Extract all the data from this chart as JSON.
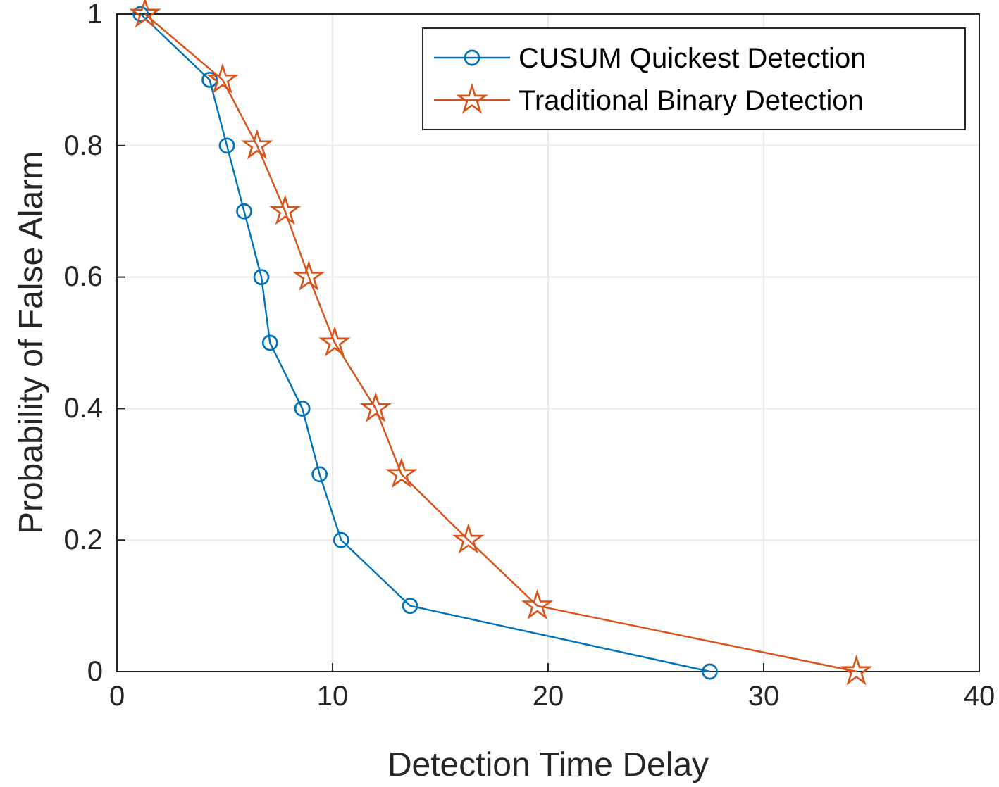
{
  "chart_data": {
    "type": "line",
    "xlabel": "Detection Time Delay",
    "ylabel": "Probability of False Alarm",
    "xlim": [
      0,
      40
    ],
    "xticks": [
      0,
      10,
      20,
      30,
      40
    ],
    "ylim": [
      0,
      1
    ],
    "yticks": [
      0,
      0.2,
      0.4,
      0.6,
      0.8,
      1
    ],
    "grid": true,
    "legend": "top right",
    "line_style": "solid",
    "series": [
      {
        "name": "CUSUM Quickest Detection",
        "color": "#0072bd",
        "marker": "circle",
        "x": [
          1.1,
          4.3,
          5.1,
          5.9,
          6.7,
          7.1,
          8.6,
          9.4,
          10.4,
          13.6,
          27.5
        ],
        "values": [
          1,
          0.9,
          0.8,
          0.7,
          0.6,
          0.5,
          0.4,
          0.3,
          0.2,
          0.1,
          0
        ]
      },
      {
        "name": "Traditional Binary Detection",
        "color": "#d95319",
        "marker": "star",
        "x": [
          1.3,
          4.9,
          6.5,
          7.8,
          8.9,
          10.1,
          12,
          13.2,
          16.3,
          19.5,
          34.3
        ],
        "values": [
          1,
          0.9,
          0.8,
          0.7,
          0.6,
          0.5,
          0.4,
          0.3,
          0.2,
          0.1,
          0
        ]
      }
    ]
  }
}
